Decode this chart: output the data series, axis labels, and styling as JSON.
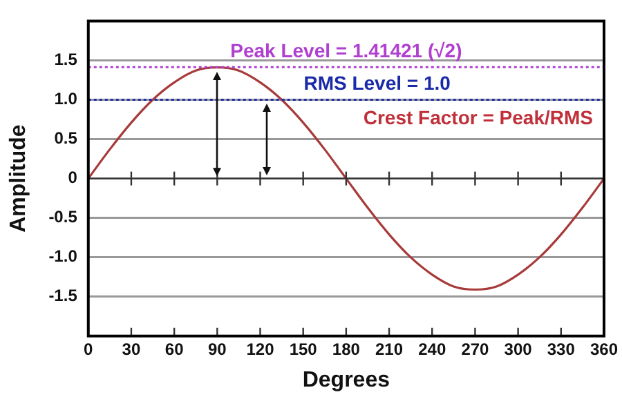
{
  "chart_data": {
    "type": "line",
    "xlabel": "Degrees",
    "ylabel": "Amplitude",
    "x": [
      0,
      15,
      30,
      45,
      60,
      75,
      90,
      105,
      120,
      135,
      150,
      165,
      180,
      195,
      210,
      225,
      240,
      255,
      270,
      285,
      300,
      315,
      330,
      345,
      360
    ],
    "series": [
      {
        "color": "#a83a3a",
        "values": [
          0,
          0.37,
          0.71,
          1.0,
          1.22,
          1.37,
          1.41,
          1.37,
          1.22,
          1.0,
          0.71,
          0.37,
          0,
          -0.37,
          -0.71,
          -1.0,
          -1.22,
          -1.37,
          -1.41,
          -1.37,
          -1.22,
          -1.0,
          -0.71,
          -0.37,
          0
        ]
      }
    ],
    "xlim": [
      0,
      360
    ],
    "xticks": [
      0,
      30,
      60,
      90,
      120,
      150,
      180,
      210,
      240,
      270,
      300,
      330,
      360
    ],
    "ylim": [
      -2,
      2
    ],
    "yticks": [
      -1.5,
      {
        "value": -1,
        "label": "-1.0"
      },
      -0.5,
      0,
      0.5,
      {
        "value": 1,
        "label": "1.0"
      },
      1.5
    ],
    "ref_lines": [
      {
        "axis": "y",
        "value": 1.41421,
        "label": "Peak Level = 1.41421 (√2)",
        "color": "#b040d0",
        "line_style": "dotted"
      },
      {
        "axis": "y",
        "value": 1.0,
        "label": "RMS Level = 1.0",
        "color": "#1a2aa8",
        "line_style": "dotted"
      }
    ],
    "annotations": [
      "Crest Factor = Peak/RMS"
    ],
    "grid": "y",
    "legend": false,
    "marker": "none",
    "line_style": "solid"
  }
}
